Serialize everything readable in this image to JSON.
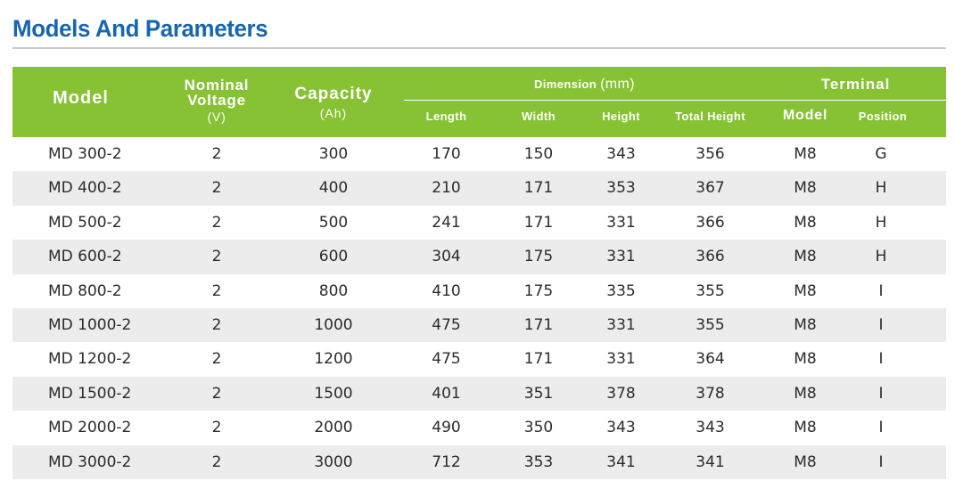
{
  "title": "Models And Parameters",
  "header": {
    "model": "Model",
    "voltage_line1": "Nominal",
    "voltage_line2": "Voltage",
    "voltage_unit": "(V)",
    "capacity": "Capacity",
    "capacity_unit": "(Ah)",
    "dimension": "Dimension",
    "dimension_unit": "(mm)",
    "length": "Length",
    "width": "Width",
    "height": "Height",
    "total_height": "Total Height",
    "terminal": "Terminal",
    "terminal_model": "Model",
    "terminal_position": "Position"
  },
  "colors": {
    "title": "#1766b1",
    "header_bg": "#86c233",
    "alt_row_bg": "#ececec",
    "rule": "#c9c9c9"
  },
  "rows": [
    {
      "model": "MD 300-2",
      "voltage": "2",
      "capacity": "300",
      "length": "170",
      "width": "150",
      "height": "343",
      "total_height": "356",
      "terminal_model": "M8",
      "terminal_position": "G"
    },
    {
      "model": "MD 400-2",
      "voltage": "2",
      "capacity": "400",
      "length": "210",
      "width": "171",
      "height": "353",
      "total_height": "367",
      "terminal_model": "M8",
      "terminal_position": "H"
    },
    {
      "model": "MD 500-2",
      "voltage": "2",
      "capacity": "500",
      "length": "241",
      "width": "171",
      "height": "331",
      "total_height": "366",
      "terminal_model": "M8",
      "terminal_position": "H"
    },
    {
      "model": "MD 600-2",
      "voltage": "2",
      "capacity": "600",
      "length": "304",
      "width": "175",
      "height": "331",
      "total_height": "366",
      "terminal_model": "M8",
      "terminal_position": "H"
    },
    {
      "model": "MD 800-2",
      "voltage": "2",
      "capacity": "800",
      "length": "410",
      "width": "175",
      "height": "335",
      "total_height": "355",
      "terminal_model": "M8",
      "terminal_position": "I"
    },
    {
      "model": "MD 1000-2",
      "voltage": "2",
      "capacity": "1000",
      "length": "475",
      "width": "171",
      "height": "331",
      "total_height": "355",
      "terminal_model": "M8",
      "terminal_position": "I"
    },
    {
      "model": "MD 1200-2",
      "voltage": "2",
      "capacity": "1200",
      "length": "475",
      "width": "171",
      "height": "331",
      "total_height": "364",
      "terminal_model": "M8",
      "terminal_position": "I"
    },
    {
      "model": "MD 1500-2",
      "voltage": "2",
      "capacity": "1500",
      "length": "401",
      "width": "351",
      "height": "378",
      "total_height": "378",
      "terminal_model": "M8",
      "terminal_position": "I"
    },
    {
      "model": "MD 2000-2",
      "voltage": "2",
      "capacity": "2000",
      "length": "490",
      "width": "350",
      "height": "343",
      "total_height": "343",
      "terminal_model": "M8",
      "terminal_position": "I"
    },
    {
      "model": "MD 3000-2",
      "voltage": "2",
      "capacity": "3000",
      "length": "712",
      "width": "353",
      "height": "341",
      "total_height": "341",
      "terminal_model": "M8",
      "terminal_position": "I"
    }
  ]
}
